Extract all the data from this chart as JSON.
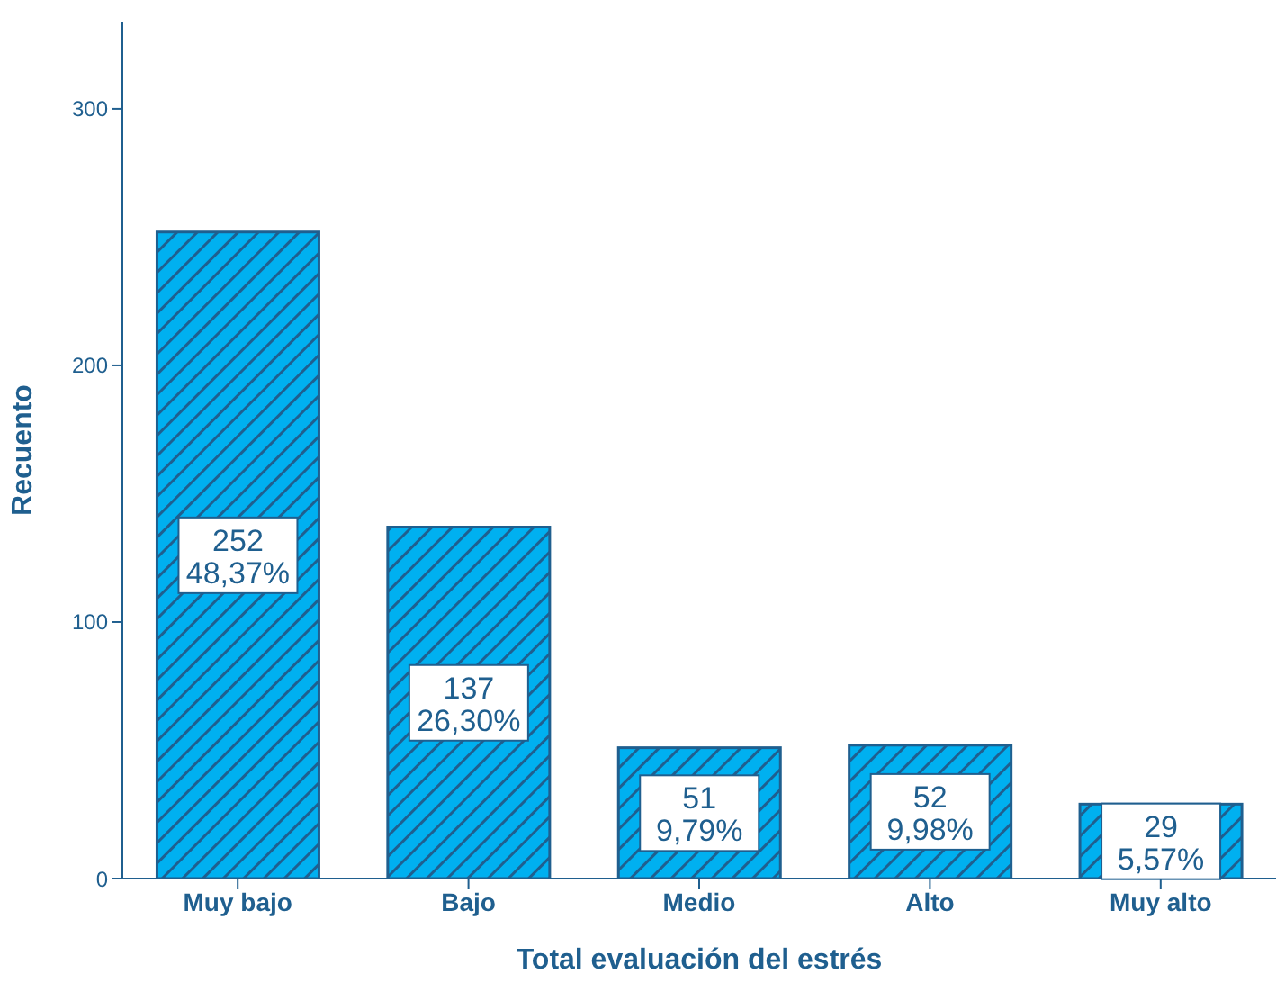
{
  "chart_data": {
    "type": "bar",
    "xlabel": "Total evaluación del estrés",
    "ylabel": "Recuento",
    "categories": [
      "Muy bajo",
      "Bajo",
      "Medio",
      "Alto",
      "Muy alto"
    ],
    "values": [
      252,
      137,
      51,
      52,
      29
    ],
    "value_labels": [
      "252\n48,37%",
      "137\n26,30%",
      "51\n9,79%",
      "52\n9,98%",
      "29\n5,57%"
    ],
    "color": "#00b0f0",
    "ylim": [
      0,
      334
    ],
    "yticks": [
      0,
      100,
      200,
      300
    ],
    "grid": false
  }
}
